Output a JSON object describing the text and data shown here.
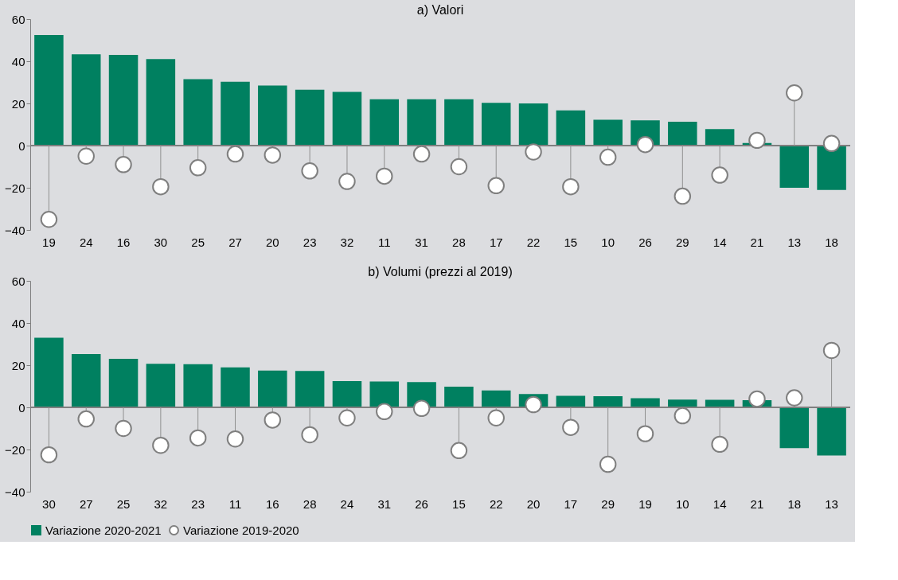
{
  "chart_data": [
    {
      "type": "bar",
      "title": "a) Valori",
      "categories": [
        "19",
        "24",
        "16",
        "30",
        "25",
        "27",
        "20",
        "23",
        "32",
        "11",
        "31",
        "28",
        "17",
        "22",
        "15",
        "10",
        "26",
        "29",
        "14",
        "21",
        "13",
        "18"
      ],
      "series": [
        {
          "name": "Variazione 2020-2021",
          "color": "#008060",
          "values": [
            52.5,
            43.3,
            43,
            41,
            31.5,
            30.3,
            28.5,
            26.5,
            25.5,
            22,
            22,
            22,
            20.3,
            20,
            16.7,
            12.3,
            12,
            11.3,
            7.8,
            1.2,
            -20,
            -21
          ]
        },
        {
          "type": "lollipop",
          "name": "Variazione 2019-2020",
          "color": "#ffffff",
          "values": [
            -35,
            -5,
            -9,
            -19.5,
            -10.5,
            -4,
            -4.5,
            -12,
            -17,
            -14.5,
            -4,
            -10,
            -19,
            -3,
            -19.5,
            -5.5,
            0.5,
            -24,
            -14,
            2.5,
            25,
            1
          ]
        }
      ],
      "ref_lines": [
        {
          "axis": "y",
          "value": 0,
          "color": "#7f7f7f"
        }
      ],
      "ylim": [
        -40,
        60
      ],
      "yticks": [
        -40,
        -20,
        0,
        20,
        40,
        60
      ],
      "legend": "bottom"
    },
    {
      "type": "bar",
      "title": "b) Volumi (prezzi al 2019)",
      "categories": [
        "30",
        "27",
        "25",
        "32",
        "23",
        "11",
        "16",
        "28",
        "24",
        "31",
        "26",
        "15",
        "22",
        "20",
        "17",
        "29",
        "19",
        "10",
        "14",
        "21",
        "18",
        "13"
      ],
      "series": [
        {
          "name": "Variazione 2020-2021",
          "color": "#008060",
          "values": [
            33,
            25.3,
            23,
            20.7,
            20.5,
            19,
            17.5,
            17.3,
            12.5,
            12.3,
            12,
            9.8,
            8,
            6.3,
            5.5,
            5.3,
            4.3,
            3.7,
            3.6,
            3.4,
            -19.3,
            -22.8
          ]
        },
        {
          "type": "lollipop",
          "name": "Variazione 2019-2020",
          "color": "#ffffff",
          "values": [
            -22.5,
            -5.5,
            -10,
            -18,
            -14.5,
            -15,
            -6,
            -13,
            -5,
            -2,
            -0.5,
            -20.5,
            -5,
            1.3,
            -9.5,
            -27,
            -12.5,
            -4,
            -17.5,
            4,
            4.5,
            27
          ]
        }
      ],
      "ref_lines": [
        {
          "axis": "y",
          "value": 0,
          "color": "#7f7f7f"
        }
      ],
      "ylim": [
        -40,
        60
      ],
      "yticks": [
        -40,
        -20,
        0,
        20,
        40,
        60
      ],
      "legend": "bottom"
    }
  ]
}
